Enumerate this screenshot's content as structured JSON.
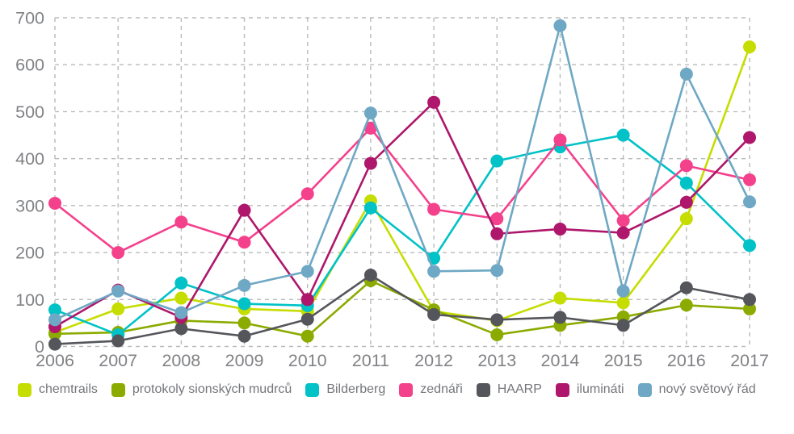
{
  "chart_data": {
    "type": "line",
    "title": "",
    "xlabel": "",
    "ylabel": "",
    "x": [
      "2006",
      "2007",
      "2008",
      "2009",
      "2010",
      "2011",
      "2012",
      "2013",
      "2014",
      "2015",
      "2016",
      "2017"
    ],
    "ylim": [
      0,
      700
    ],
    "yticks": [
      0,
      100,
      200,
      300,
      400,
      500,
      600,
      700
    ],
    "grid": "dashed",
    "legend_position": "bottom",
    "marker": "circle",
    "series": [
      {
        "id": "chemtrails",
        "name": "chemtrails",
        "color": "#c6dd00",
        "values": [
          30,
          80,
          103,
          80,
          75,
          310,
          75,
          55,
          103,
          93,
          272,
          638
        ]
      },
      {
        "id": "protokoly-sionskych-mudrcu",
        "name": "protokoly sionských mudrců",
        "color": "#8cab00",
        "values": [
          27,
          30,
          55,
          50,
          22,
          140,
          78,
          25,
          45,
          63,
          88,
          80
        ]
      },
      {
        "id": "bilderberg",
        "name": "Bilderberg",
        "color": "#00c2c7",
        "values": [
          78,
          25,
          135,
          91,
          87,
          295,
          188,
          395,
          425,
          450,
          348,
          215
        ]
      },
      {
        "id": "zednari",
        "name": "zednáři",
        "color": "#f4418c",
        "values": [
          305,
          200,
          265,
          222,
          325,
          465,
          292,
          272,
          440,
          268,
          385,
          355
        ]
      },
      {
        "id": "haarp",
        "name": "HAARP",
        "color": "#54565b",
        "values": [
          5,
          12,
          38,
          22,
          58,
          152,
          68,
          57,
          62,
          45,
          125,
          100
        ]
      },
      {
        "id": "iluminati",
        "name": "ilumináti",
        "color": "#ae176b",
        "values": [
          42,
          120,
          62,
          290,
          100,
          390,
          520,
          240,
          250,
          242,
          307,
          445
        ]
      },
      {
        "id": "novy-svetovy-rad",
        "name": "nový světový řád",
        "color": "#6fa8c4",
        "values": [
          57,
          118,
          72,
          130,
          160,
          497,
          160,
          162,
          683,
          118,
          580,
          308
        ]
      }
    ]
  }
}
